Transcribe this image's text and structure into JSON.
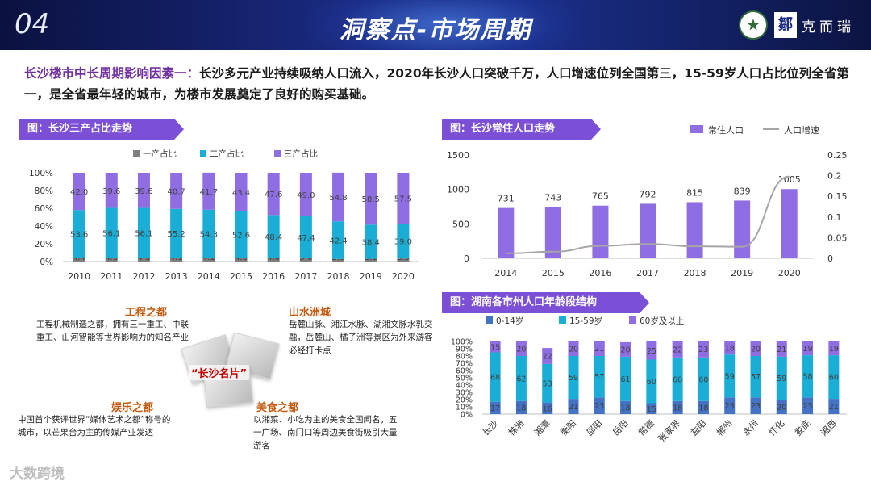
{
  "header": {
    "number": "04",
    "title": "洞察点-市场周期",
    "logo_text": "克而瑞",
    "logo_mark": "鄒"
  },
  "headline": {
    "highlight": "长沙楼市中长周期影响因素一：",
    "text": "长沙多元产业持续吸纳人口流入，2020年长沙人口突破千万，人口增速位列全国第三，15-59岁人口占比位列全省第一，是全省最年轻的城市，为楼市发展奠定了良好的购买基础。"
  },
  "info": {
    "center_label": "“长沙名片”",
    "blocks": [
      {
        "title": "工程之都",
        "text": "工程机械制造之都，拥有三一重工、中联重工、山河智能等世界影响力的知名产业"
      },
      {
        "title": "山水洲城",
        "text": "岳麓山脉、湘江水脉、湖湘文脉水乳交融，岳麓山、橘子洲等景区为外来游客必经打卡点"
      },
      {
        "title": "娱乐之都",
        "text": "中国首个获评世界“媒体艺术之都”称号的城市，以芒果台为主的传媒产业发达"
      },
      {
        "title": "美食之都",
        "text": "以湘菜、小吃为主的美食全国闻名，五一广场、南门口等周边美食街吸引大量游客"
      }
    ]
  },
  "watermark": "大数跨境",
  "colors": {
    "primary": "#1aaed6",
    "secondary": "#8f6ee3",
    "tertiary": "#4472c4",
    "tag_bg": "#7b4fd6",
    "line": "#a6a6a6",
    "banner": "#1a2a80"
  },
  "chart_data": [
    {
      "type": "bar",
      "stacked": true,
      "title": "图：长沙三产占比走势",
      "categories": [
        "2010",
        "2011",
        "2012",
        "2013",
        "2014",
        "2015",
        "2016",
        "2017",
        "2018",
        "2019",
        "2020"
      ],
      "series": [
        {
          "name": "一产占比",
          "values": [
            4.4,
            4.3,
            4.3,
            4.1,
            4.1,
            4.0,
            4.0,
            3.6,
            2.9,
            3.1,
            3.5
          ]
        },
        {
          "name": "二产占比",
          "values": [
            53.6,
            56.1,
            56.1,
            55.2,
            54.3,
            52.6,
            48.4,
            47.4,
            42.4,
            38.4,
            39.0
          ]
        },
        {
          "name": "三产占比",
          "values": [
            42.0,
            39.6,
            39.6,
            40.7,
            41.7,
            43.4,
            47.6,
            49.0,
            54.8,
            58.5,
            57.5
          ]
        }
      ],
      "ylim": [
        0,
        100
      ],
      "yticks": [
        "0%",
        "20%",
        "40%",
        "60%",
        "80%",
        "100%"
      ],
      "legend": "top"
    },
    {
      "type": "bar",
      "title": "图：长沙常住人口走势",
      "categories": [
        "2014",
        "2015",
        "2016",
        "2017",
        "2018",
        "2019",
        "2020"
      ],
      "series": [
        {
          "name": "常住人口",
          "type": "bar",
          "axis": "left",
          "values": [
            731,
            743,
            765,
            792,
            815,
            839,
            1005
          ]
        },
        {
          "name": "人口增速",
          "type": "line",
          "axis": "right",
          "values": [
            0.012,
            0.016,
            0.03,
            0.035,
            0.029,
            0.028,
            0.198
          ]
        }
      ],
      "ylim": [
        0,
        1500
      ],
      "yticks": [
        "0",
        "500",
        "1000",
        "1500"
      ],
      "y2lim": [
        0,
        0.25
      ],
      "y2ticks": [
        "0",
        "0.05",
        "0.1",
        "0.15",
        "0.2",
        "0.25"
      ],
      "legend": "top-right"
    },
    {
      "type": "bar",
      "stacked": true,
      "title": "图：湖南各市州人口年龄段结构",
      "categories": [
        "长沙",
        "株洲",
        "湘潭",
        "衡阳",
        "邵阳",
        "岳阳",
        "常德",
        "张家界",
        "益阳",
        "郴州",
        "永州",
        "怀化",
        "娄底",
        "湘西"
      ],
      "series": [
        {
          "name": "0-14岁",
          "values": [
            17,
            18,
            16,
            21,
            23,
            18,
            15,
            18,
            18,
            23,
            23,
            20,
            23,
            21
          ]
        },
        {
          "name": "15-59岁",
          "values": [
            68,
            62,
            53,
            59,
            57,
            61,
            60,
            60,
            60,
            59,
            57,
            59,
            58,
            60
          ]
        },
        {
          "name": "60岁及以上",
          "values": [
            15,
            20,
            22,
            20,
            21,
            20,
            25,
            22,
            23,
            18,
            20,
            21,
            19,
            19
          ]
        }
      ],
      "ylim": [
        0,
        100
      ],
      "yticks": [
        "0%",
        "10%",
        "20%",
        "30%",
        "40%",
        "50%",
        "60%",
        "70%",
        "80%",
        "90%",
        "100%"
      ],
      "legend": "top"
    }
  ]
}
